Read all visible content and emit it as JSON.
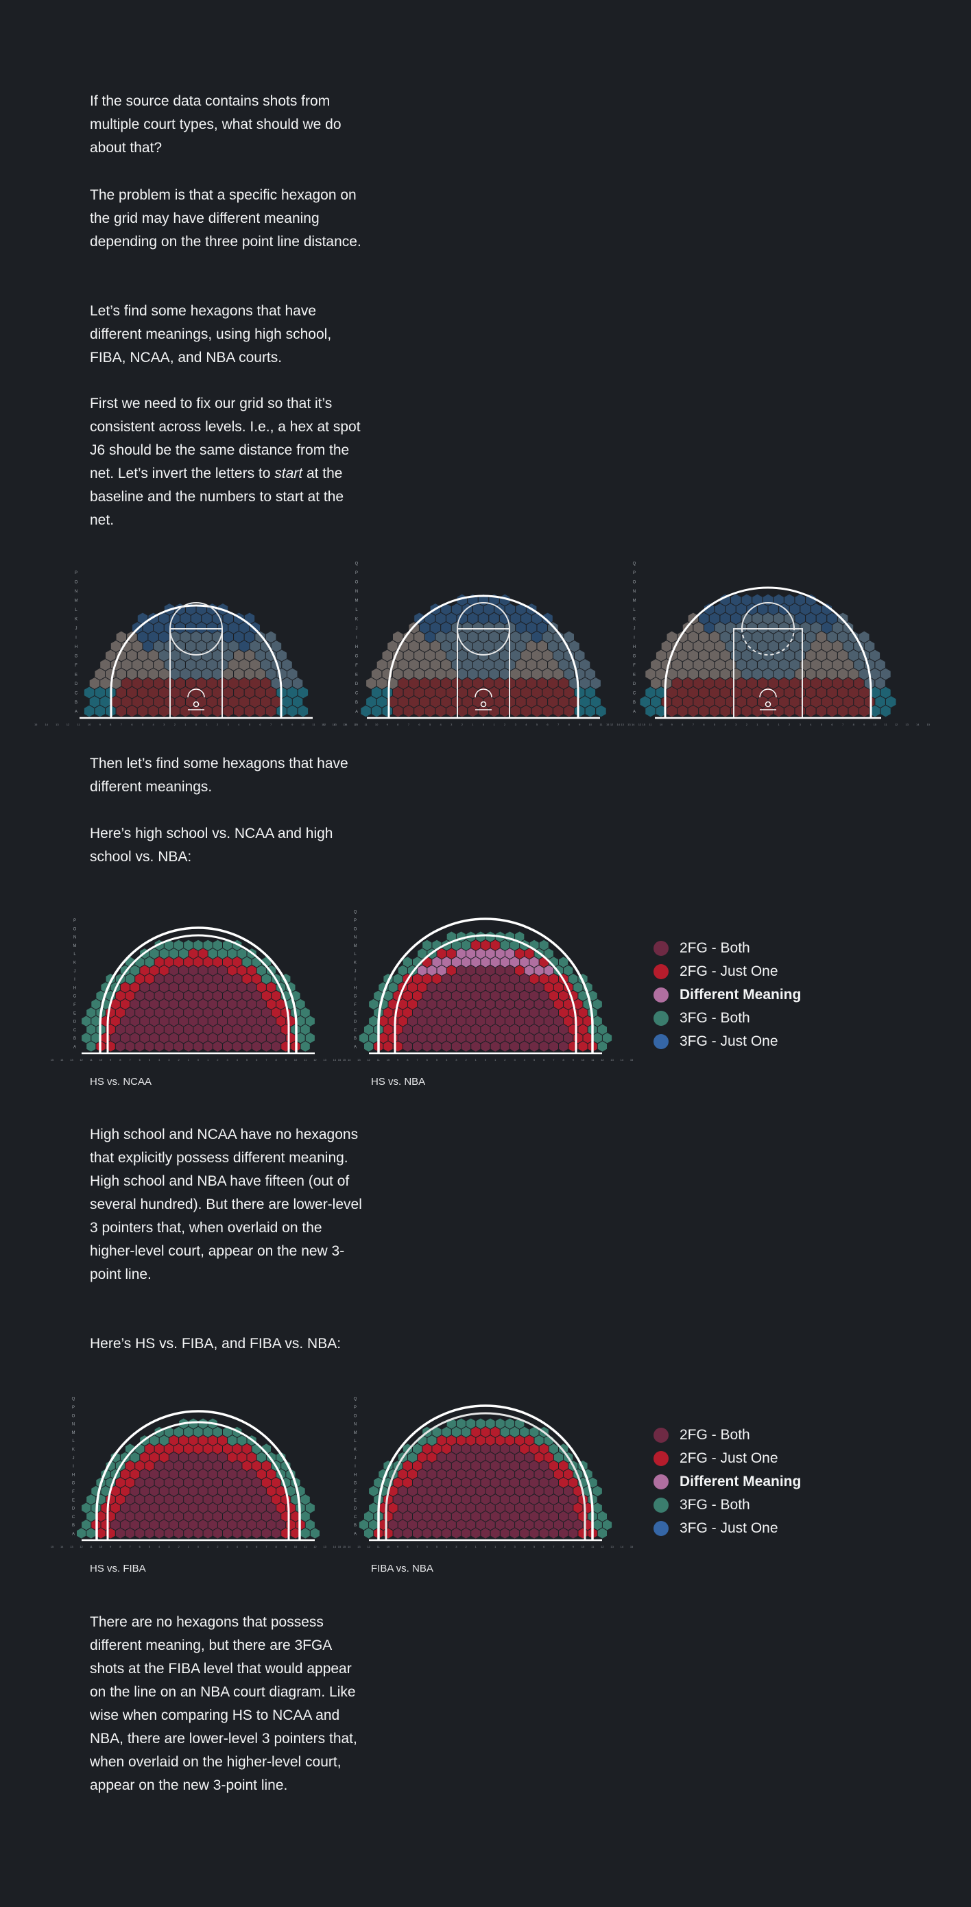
{
  "intro": {
    "p1": "If the source data contains shots from multiple court types, what should we do about that?",
    "p2": "The problem is that a specific hexagon on the grid may have different meaning depending on the three point line distance.",
    "p3": "Let’s find some hexagons that have different meanings, using high school, FIBA, NCAA, and NBA courts.",
    "p4_before": "First we need to fix our grid so that it’s consistent across levels. I.e., a hex at spot J6 should be the same distance from the net. Let’s invert the letters to ",
    "p4_em": "start",
    "p4_after": " at the baseline and the numbers to start at the net."
  },
  "section2": {
    "p1": "Then let’s find some hexagons that have different meanings.",
    "p2": "Here’s high school vs. NCAA and high school vs. NBA:"
  },
  "captions": {
    "hs_ncaa": "HS vs. NCAA",
    "hs_nba": "HS vs. NBA",
    "hs_fiba": "HS vs. FIBA",
    "fiba_nba": "FIBA vs. NBA"
  },
  "section3": {
    "p1": "High school and NCAA have no hexagons that explicitly possess different meaning. High school and NBA have fifteen (out of several hundred). But there are lower-level 3 pointers that, when overlaid on the higher-level court, appear on the new 3-point line.",
    "p2": "Here’s HS vs. FIBA, and FIBA vs. NBA:"
  },
  "section4": {
    "p1": "There are no hexagons that possess different meaning, but there are 3FGA shots at the FIBA level that would appear on the line on an NBA court diagram. Like wise when comparing HS to NCAA and NBA, there are lower-level 3 pointers that, when overlaid on the higher-level court, appear on the new 3-point line."
  },
  "legend": [
    {
      "label": "2FG - Both",
      "color": "#6e2a44",
      "bold": false
    },
    {
      "label": "2FG - Just One",
      "color": "#b51c2c",
      "bold": false
    },
    {
      "label": "Different Meaning",
      "color": "#b06fa0",
      "bold": true
    },
    {
      "label": "3FG - Both",
      "color": "#3b7d6e",
      "bold": false
    },
    {
      "label": "3FG - Just One",
      "color": "#3566a6",
      "bold": false
    }
  ],
  "grid_labels": {
    "rows": [
      "A",
      "B",
      "C",
      "D",
      "E",
      "F",
      "G",
      "H",
      "I",
      "J",
      "K",
      "L",
      "M",
      "N",
      "O",
      "P",
      "Q"
    ]
  },
  "colors": {
    "background": "#1c1f24",
    "two_both": "#6e2a44",
    "two_one": "#b51c2c",
    "different": "#b06fa0",
    "three_both": "#3b7d6e",
    "three_one": "#3566a6",
    "zone_grey": "#6b6461",
    "zone_red": "#6b2a2e",
    "zone_blue": "#2b4a6c",
    "zone_slate": "#4c5f6e",
    "zone_teal": "#1f6272"
  }
}
